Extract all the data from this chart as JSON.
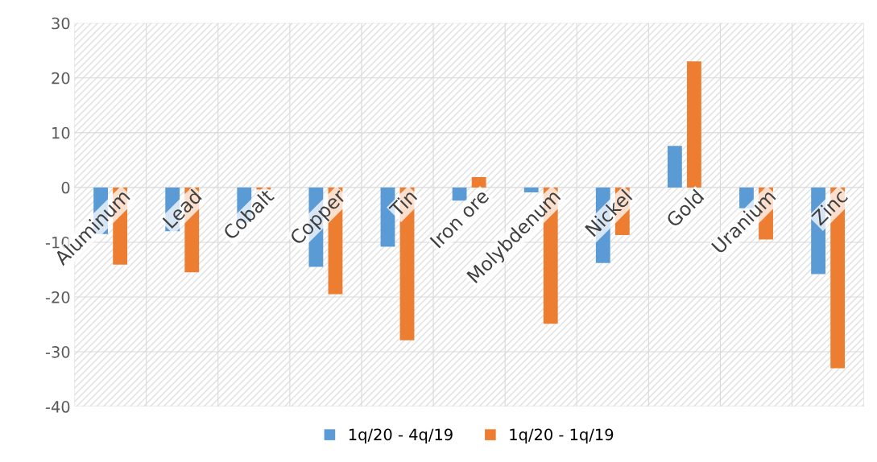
{
  "chart_data": {
    "type": "bar",
    "categories": [
      "Aluminum",
      "Lead",
      "Cobalt",
      "Copper",
      "Tin",
      "Iron ore",
      "Molybdenum",
      "Nickel",
      "Gold",
      "Uranium",
      "Zinc"
    ],
    "series": [
      {
        "name": "1q/20 - 4q/19",
        "color": "#5b9bd5",
        "values": [
          -8.5,
          -8.0,
          -6.3,
          -14.5,
          -10.8,
          -2.4,
          -0.9,
          -13.8,
          7.6,
          -3.8,
          -15.8
        ]
      },
      {
        "name": "1q/20 - 1q/19",
        "color": "#ed7d31",
        "values": [
          -14.1,
          -15.5,
          -0.4,
          -19.5,
          -27.9,
          1.9,
          -24.9,
          -8.7,
          23.0,
          -9.5,
          -33.0
        ]
      }
    ],
    "ylim": [
      -40,
      30
    ],
    "yticks": [
      -40,
      -30,
      -20,
      -10,
      0,
      10,
      20,
      30
    ],
    "grid": true,
    "legend": "bottom"
  }
}
